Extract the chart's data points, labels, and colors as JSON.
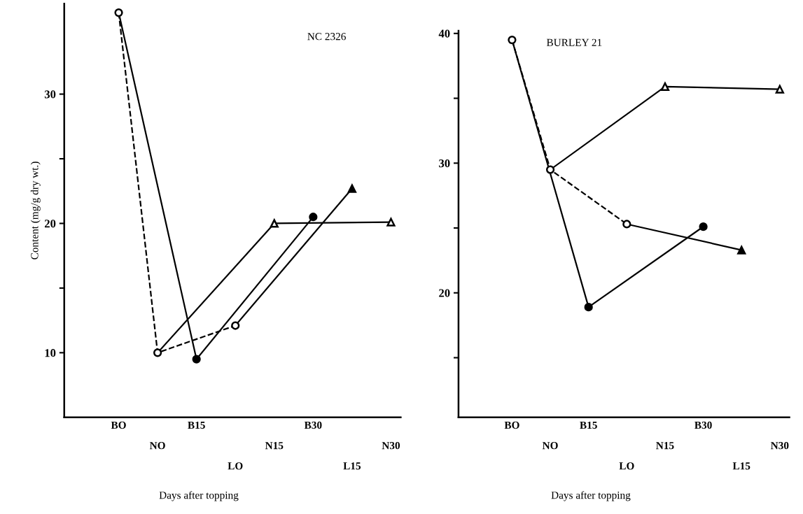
{
  "chart_data": [
    {
      "type": "line",
      "title": "NC 2326",
      "xlabel": "Days after topping",
      "ylabel": "Content (mg/g dry wt.)",
      "categories": [
        "BO",
        "NO",
        "B15",
        "LO",
        "N15",
        "B30",
        "L15",
        "N30"
      ],
      "series": [
        {
          "color": "#000000",
          "line_style": "solid",
          "marker": "circle",
          "values": [
            36.3,
            null,
            9.5,
            null,
            null,
            20.5,
            null,
            null
          ],
          "colors": [
            null,
            null,
            "#000000",
            null,
            null,
            "#000000",
            null,
            null
          ]
        },
        {
          "color": "#000000",
          "line_style": "solid",
          "marker": "triangle",
          "values": [
            null,
            10.0,
            null,
            null,
            20.0,
            null,
            null,
            20.1
          ],
          "colors": [
            null,
            null,
            null,
            null,
            "#ffffff",
            null,
            null,
            "#ffffff"
          ]
        },
        {
          "color": "#000000",
          "line_style": "solid",
          "marker": "triangle",
          "values": [
            null,
            null,
            null,
            12.1,
            null,
            null,
            22.7,
            null
          ],
          "colors": [
            null,
            null,
            null,
            null,
            null,
            null,
            "#000000",
            null
          ]
        },
        {
          "color": "#000000",
          "line_style": "dashed",
          "marker": "circle",
          "values": [
            36.3,
            10.0,
            null,
            12.1,
            null,
            null,
            null,
            null
          ],
          "colors": [
            "#ffffff",
            "#ffffff",
            null,
            "#ffffff",
            null,
            null,
            null,
            null
          ]
        }
      ],
      "ylim": [
        5,
        37
      ],
      "yticks": [
        10,
        {
          "value": 15,
          "label": null
        },
        20,
        {
          "value": 25,
          "label": null
        },
        30
      ],
      "grid": false,
      "legend": false
    },
    {
      "type": "line",
      "title": "BURLEY 21",
      "xlabel": "Days after topping",
      "categories": [
        "BO",
        "NO",
        "B15",
        "LO",
        "N15",
        "B30",
        "L15",
        "N30"
      ],
      "series": [
        {
          "color": "#000000",
          "line_style": "solid",
          "marker": "circle",
          "values": [
            39.5,
            null,
            18.9,
            null,
            null,
            25.1,
            null,
            null
          ],
          "colors": [
            null,
            null,
            "#000000",
            null,
            null,
            "#000000",
            null,
            null
          ]
        },
        {
          "color": "#000000",
          "line_style": "solid",
          "marker": "triangle",
          "values": [
            null,
            29.5,
            null,
            null,
            35.9,
            null,
            null,
            35.7
          ],
          "colors": [
            null,
            null,
            null,
            null,
            "#ffffff",
            null,
            null,
            "#ffffff"
          ]
        },
        {
          "color": "#000000",
          "line_style": "solid",
          "marker": "triangle",
          "values": [
            null,
            null,
            null,
            25.3,
            null,
            null,
            23.3,
            null
          ],
          "colors": [
            null,
            null,
            null,
            null,
            null,
            null,
            "#000000",
            null
          ]
        },
        {
          "color": "#000000",
          "line_style": "dashed",
          "marker": "circle",
          "values": [
            39.5,
            29.5,
            null,
            25.3,
            null,
            null,
            null,
            null
          ],
          "colors": [
            "#ffffff",
            "#ffffff",
            null,
            "#ffffff",
            null,
            null,
            null,
            null
          ]
        }
      ],
      "ylim": [
        10.4,
        40.2
      ],
      "yticks": [
        {
          "value": 15,
          "label": null
        },
        20,
        {
          "value": 25,
          "label": null
        },
        30,
        {
          "value": 35,
          "label": null
        },
        40
      ],
      "grid": false,
      "legend": false
    }
  ]
}
